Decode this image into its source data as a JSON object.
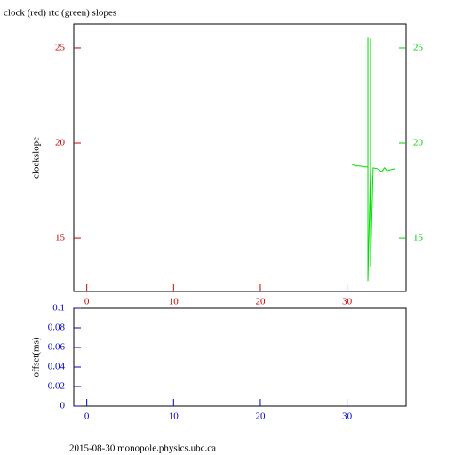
{
  "chart_data": [
    {
      "type": "line",
      "title": "clock (red) rtc (green) slopes",
      "y_label": "clockslope",
      "xlim": [
        -1.5,
        36.8
      ],
      "xticks": [
        0,
        10,
        20,
        30
      ],
      "ylim": [
        12.2,
        26.26
      ],
      "yticks": [
        15,
        20,
        25
      ],
      "y2lim": [
        12.2,
        26.26
      ],
      "y2ticks": [
        15,
        20,
        25
      ],
      "xtick_color": "#cc0000",
      "ytick_color": "#cc0000",
      "y2tick_color": "#00cc00",
      "series": [
        {
          "color": "#00dd00",
          "axis": "y2",
          "x": [
            30.5,
            31,
            31.5,
            32,
            32.4,
            32.4,
            32.4,
            32.7,
            32.7,
            32.7,
            33,
            33.5,
            34,
            34.3,
            34.6,
            35,
            35.5
          ],
          "values": [
            18.9,
            18.8,
            18.8,
            18.75,
            18.75,
            25.55,
            12.75,
            18.7,
            25.5,
            13.5,
            18.7,
            18.65,
            18.5,
            18.7,
            18.55,
            18.6,
            18.65
          ]
        }
      ]
    },
    {
      "type": "line",
      "y_label": "offset(ms)",
      "xlim": [
        -1.5,
        36.8
      ],
      "xticks": [
        0,
        10,
        20,
        30
      ],
      "ylim": [
        0,
        0.1
      ],
      "yticks": [
        0,
        0.02,
        0.04,
        0.06,
        0.08,
        0.1
      ],
      "xtick_color": "#0000cc",
      "ytick_color": "#0000cc"
    }
  ],
  "footer": "2015-08-30 monopole.physics.ubc.ca"
}
